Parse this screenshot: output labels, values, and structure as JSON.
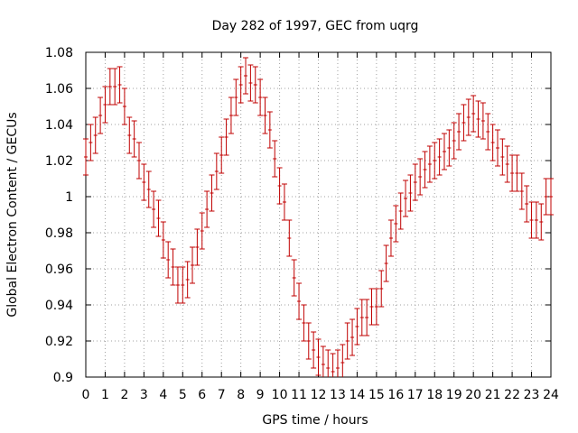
{
  "chart_data": {
    "type": "scatter",
    "title": "Day 282 of 1997, GEC from uqrg",
    "xlabel": "GPS time / hours",
    "ylabel": "Global Electron Content / GECUs",
    "xlim": [
      0,
      24
    ],
    "ylim": [
      0.9,
      1.08
    ],
    "xticks": [
      0,
      1,
      2,
      3,
      4,
      5,
      6,
      7,
      8,
      9,
      10,
      11,
      12,
      13,
      14,
      15,
      16,
      17,
      18,
      19,
      20,
      21,
      22,
      23,
      24
    ],
    "xtick_labels": [
      "0",
      "1",
      "2",
      "3",
      "4",
      "5",
      "6",
      "7",
      "8",
      "9",
      "10",
      "11",
      "12",
      "13",
      "14",
      "15",
      "16",
      "17",
      "18",
      "19",
      "20",
      "21",
      "22",
      "23",
      "24"
    ],
    "yticks": [
      0.9,
      0.92,
      0.94,
      0.96,
      0.98,
      1.0,
      1.02,
      1.04,
      1.06,
      1.08
    ],
    "ytick_labels": [
      "0.9",
      "0.92",
      "0.94",
      "0.96",
      "0.98",
      "1",
      "1.02",
      "1.04",
      "1.06",
      "1.08"
    ],
    "grid": true,
    "color": "#c00000",
    "error": 0.01,
    "series": [
      {
        "name": "GEC",
        "x": [
          0.0,
          0.25,
          0.5,
          0.75,
          1.0,
          1.25,
          1.5,
          1.75,
          2.0,
          2.25,
          2.5,
          2.75,
          3.0,
          3.25,
          3.5,
          3.75,
          4.0,
          4.25,
          4.5,
          4.75,
          5.0,
          5.25,
          5.5,
          5.75,
          6.0,
          6.25,
          6.5,
          6.75,
          7.0,
          7.25,
          7.5,
          7.75,
          8.0,
          8.25,
          8.5,
          8.75,
          9.0,
          9.25,
          9.5,
          9.75,
          10.0,
          10.25,
          10.5,
          10.75,
          11.0,
          11.25,
          11.5,
          11.75,
          12.0,
          12.25,
          12.5,
          12.75,
          13.0,
          13.25,
          13.5,
          13.75,
          14.0,
          14.25,
          14.5,
          14.75,
          15.0,
          15.25,
          15.5,
          15.75,
          16.0,
          16.25,
          16.5,
          16.75,
          17.0,
          17.25,
          17.5,
          17.75,
          18.0,
          18.25,
          18.5,
          18.75,
          19.0,
          19.25,
          19.5,
          19.75,
          20.0,
          20.25,
          20.5,
          20.75,
          21.0,
          21.25,
          21.5,
          21.75,
          22.0,
          22.25,
          22.5,
          22.75,
          23.0,
          23.25,
          23.5,
          23.75,
          24.0
        ],
        "y": [
          1.022,
          1.03,
          1.034,
          1.045,
          1.051,
          1.061,
          1.061,
          1.062,
          1.05,
          1.034,
          1.032,
          1.02,
          1.008,
          1.004,
          0.993,
          0.988,
          0.976,
          0.965,
          0.961,
          0.951,
          0.951,
          0.954,
          0.962,
          0.972,
          0.981,
          0.993,
          1.002,
          1.014,
          1.023,
          1.033,
          1.045,
          1.055,
          1.062,
          1.067,
          1.063,
          1.062,
          1.055,
          1.045,
          1.037,
          1.021,
          1.006,
          0.997,
          0.977,
          0.955,
          0.942,
          0.93,
          0.92,
          0.915,
          0.911,
          0.907,
          0.905,
          0.903,
          0.905,
          0.908,
          0.92,
          0.922,
          0.928,
          0.933,
          0.933,
          0.939,
          0.939,
          0.949,
          0.963,
          0.977,
          0.985,
          0.992,
          0.999,
          1.002,
          1.008,
          1.011,
          1.015,
          1.018,
          1.02,
          1.022,
          1.025,
          1.027,
          1.031,
          1.036,
          1.041,
          1.044,
          1.046,
          1.043,
          1.042,
          1.036,
          1.03,
          1.027,
          1.022,
          1.018,
          1.013,
          1.013,
          1.003,
          0.996,
          0.987,
          0.987,
          0.986,
          1.0,
          1.0
        ]
      }
    ]
  }
}
